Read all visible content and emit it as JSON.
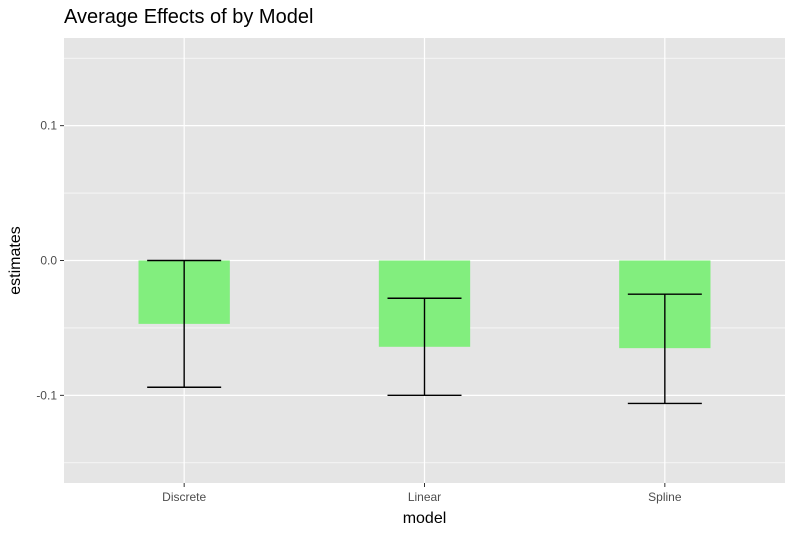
{
  "chart_data": {
    "type": "bar",
    "title": "Average Effects of by Model",
    "xlabel": "model",
    "ylabel": "estimates",
    "categories": [
      "Discrete",
      "Linear",
      "Spline"
    ],
    "values": [
      -0.047,
      -0.064,
      -0.065
    ],
    "error_low": [
      -0.094,
      -0.1,
      -0.106
    ],
    "error_high": [
      0.0,
      -0.028,
      -0.025
    ],
    "ylim": [
      -0.165,
      0.165
    ],
    "yticks": [
      -0.1,
      0.0,
      0.1
    ],
    "ytick_labels": [
      "-0.1",
      "0.0",
      "0.1"
    ],
    "grid": true,
    "legend": "none",
    "colors": {
      "bar": "#82ee7e",
      "panel": "#e5e5e5",
      "grid": "#ffffff",
      "errorbar": "#000000"
    }
  }
}
